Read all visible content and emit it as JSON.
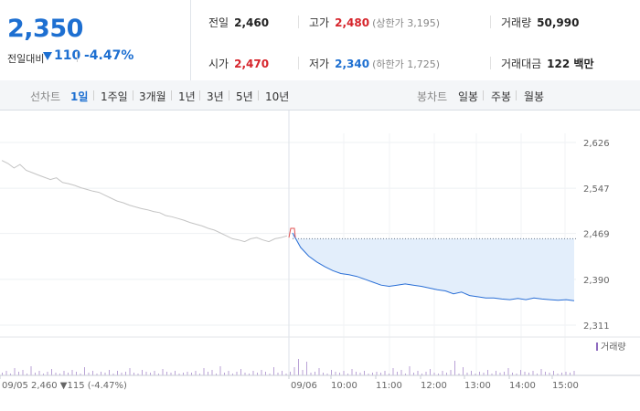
{
  "quote": {
    "price": "2,350",
    "change_label": "전일대비",
    "change_amount": "110",
    "change_percent": "-4.47%",
    "prev_close_label": "전일",
    "prev_close": "2,460",
    "high_label": "고가",
    "high": "2,480",
    "upper_limit": "(상한가 3,195)",
    "volume_label": "거래량",
    "volume": "50,990",
    "open_label": "시가",
    "open": "2,470",
    "low_label": "저가",
    "low": "2,340",
    "lower_limit": "(하한가 1,725)",
    "value_label": "거래대금",
    "value": "122 백만"
  },
  "tabs": {
    "line_label": "선차트",
    "line_tabs": [
      "1일",
      "1주일",
      "3개월",
      "1년",
      "3년",
      "5년",
      "10년"
    ],
    "candle_label": "봉차트",
    "candle_tabs": [
      "일봉",
      "주봉",
      "월봉"
    ]
  },
  "chart_data": {
    "type": "line",
    "y_ticks": [
      "2,626",
      "2,547",
      "2,469",
      "2,390",
      "2,311"
    ],
    "ylim": [
      2311,
      2626
    ],
    "x_ticks": [
      "09/05",
      "09/06",
      "10:00",
      "11:00",
      "12:00",
      "13:00",
      "14:00",
      "15:00"
    ],
    "footer": "09/05  2,460 ▼115 (-4.47%)",
    "volume_legend": "거래량",
    "prev_close_ref": 2460,
    "series": [
      {
        "values": [
          2595,
          2590,
          2582,
          2588,
          2578,
          2574,
          2570,
          2566,
          2562,
          2565,
          2557,
          2555,
          2552,
          2548,
          2545,
          2542,
          2540,
          2535,
          2530,
          2525,
          2522,
          2518,
          2515,
          2512,
          2510,
          2507,
          2505,
          2500,
          2498,
          2495,
          2492,
          2488,
          2485,
          2482,
          2478,
          2475,
          2470,
          2465,
          2460,
          2458,
          2455,
          2460,
          2462,
          2458,
          2455,
          2460,
          2462,
          2465
        ]
      },
      {
        "values": [
          2470,
          2445,
          2430,
          2420,
          2412,
          2405,
          2400,
          2398,
          2395,
          2390,
          2385,
          2380,
          2378,
          2380,
          2382,
          2380,
          2378,
          2375,
          2372,
          2370,
          2365,
          2368,
          2362,
          2360,
          2358,
          2358,
          2356,
          2355,
          2357,
          2355,
          2358,
          2356,
          2355,
          2354,
          2355,
          2353
        ]
      }
    ]
  }
}
